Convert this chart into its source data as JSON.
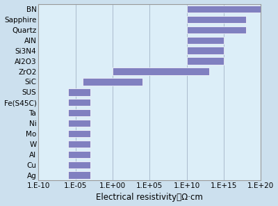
{
  "xlabel": "Electrical resistivity／Ω·cm",
  "materials_top_to_bottom": [
    "BN",
    "Sapphire",
    "Quartz",
    "AlN",
    "Si3N4",
    "Al2O3",
    "ZrO2",
    "SiC",
    "SUS",
    "Fe(S45C)",
    "Ta",
    "Ni",
    "Mo",
    "W",
    "Al",
    "Cu",
    "Ag"
  ],
  "log_bar_start": [
    10,
    10,
    10,
    10,
    10,
    10,
    0,
    -4,
    -6,
    -6,
    -6,
    -6,
    -6,
    -6,
    -6,
    -6,
    -6
  ],
  "log_bar_end": [
    20,
    18,
    18,
    15,
    15,
    15,
    13,
    4,
    -3,
    -3,
    -3,
    -3,
    -3,
    -3,
    -3,
    -3,
    -3
  ],
  "bar_color": "#8080c0",
  "bar_edge_color": "#ffffff",
  "bg_color": "#cce0ee",
  "plot_bg_color": "#dceef8",
  "grid_color": "#aabbcc",
  "border_color": "#999999",
  "tick_label_size": 7.5,
  "xlabel_size": 8.5,
  "xlim_min": -10,
  "xlim_max": 20,
  "xtick_positions": [
    -10,
    -5,
    0,
    5,
    10,
    15,
    20
  ],
  "xtick_labels": [
    "1.E-10",
    "1.E-05",
    "1.E+00",
    "1.E+05",
    "1.E+10",
    "1.E+15",
    "1.E+20"
  ],
  "bar_height": 0.7
}
